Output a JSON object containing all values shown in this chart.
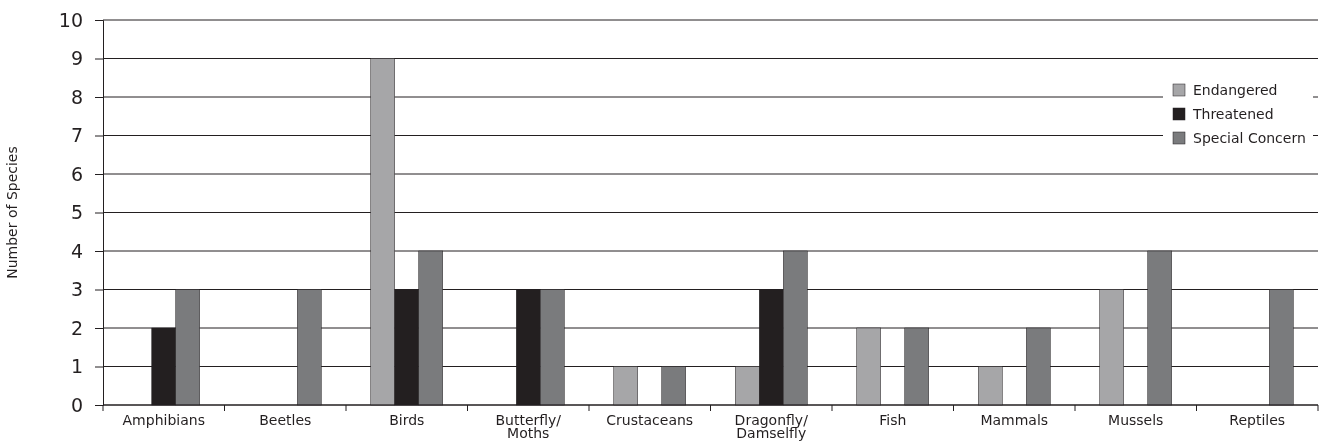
{
  "chart_data": {
    "type": "bar",
    "ylabel": "Number of Species",
    "categories": [
      "Amphibians",
      "Beetles",
      "Birds",
      "Butterfly/Moths",
      "Crustaceans",
      "Dragonfly/Damselfly",
      "Fish",
      "Mammals",
      "Mussels",
      "Reptiles"
    ],
    "series": [
      {
        "name": "Endangered",
        "color": "#a6a6a8",
        "values": [
          0,
          0,
          9,
          0,
          1,
          1,
          2,
          1,
          3,
          0
        ]
      },
      {
        "name": "Threatened",
        "color": "#231f20",
        "values": [
          2,
          0,
          3,
          3,
          0,
          3,
          0,
          0,
          0,
          0
        ]
      },
      {
        "name": "Special Concern",
        "color": "#7a7b7d",
        "values": [
          3,
          3,
          4,
          3,
          1,
          4,
          2,
          2,
          4,
          3
        ]
      }
    ],
    "ylim": [
      0,
      10
    ],
    "yticks": [
      0,
      1,
      2,
      3,
      4,
      5,
      6,
      7,
      8,
      9,
      10
    ],
    "grid": "y",
    "legend": "top right"
  }
}
